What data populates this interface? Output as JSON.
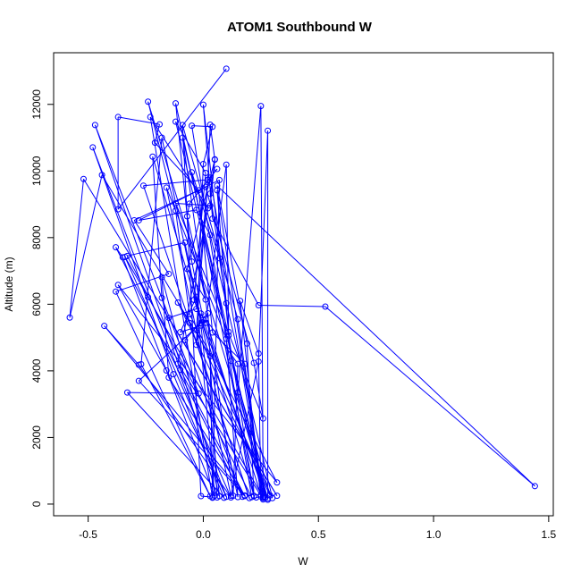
{
  "chart_data": {
    "type": "line",
    "title": "ATOM1 Southbound W",
    "xlabel": "W",
    "ylabel": "Altitude (m)",
    "xlim": [
      -0.65,
      1.52
    ],
    "ylim": [
      -350,
      13550
    ],
    "x_ticks": [
      -0.5,
      0.0,
      0.5,
      1.0,
      1.5
    ],
    "x_tick_labels": [
      "-0.5",
      "0.0",
      "0.5",
      "1.0",
      "1.5"
    ],
    "y_ticks": [
      0,
      2000,
      4000,
      6000,
      8000,
      10000,
      12000
    ],
    "y_tick_labels": [
      "0",
      "2000",
      "4000",
      "6000",
      "8000",
      "10000",
      "12000"
    ],
    "grid": false,
    "markers": "open-circle",
    "series": [
      {
        "color": "#0000ff",
        "points": [
          [
            0.1,
            13070
          ],
          [
            -0.37,
            8850
          ],
          [
            -0.37,
            11620
          ],
          [
            -0.19,
            11400
          ],
          [
            -0.21,
            10850
          ],
          [
            -0.02,
            9420
          ],
          [
            0.04,
            5150
          ],
          [
            0.18,
            4210
          ],
          [
            0.25,
            230
          ],
          [
            0.16,
            6100
          ],
          [
            0.24,
            4520
          ],
          [
            0.25,
            280
          ],
          [
            0.01,
            5560
          ],
          [
            0.15,
            4210
          ],
          [
            0.13,
            250
          ],
          [
            -0.09,
            11000
          ],
          [
            0.11,
            5060
          ],
          [
            0.22,
            250
          ],
          [
            -0.22,
            10430
          ],
          [
            -0.18,
            6190
          ],
          [
            0.06,
            200
          ],
          [
            0.02,
            5730
          ],
          [
            -0.08,
            4920
          ],
          [
            0.17,
            220
          ],
          [
            -0.38,
            7710
          ],
          [
            -0.35,
            7410
          ],
          [
            0.05,
            250
          ],
          [
            -0.03,
            6220
          ],
          [
            -0.1,
            5160
          ],
          [
            -0.01,
            5360
          ],
          [
            0.07,
            240
          ],
          [
            -0.18,
            6810
          ],
          [
            -0.15,
            3800
          ],
          [
            0.18,
            260
          ],
          [
            -0.43,
            5350
          ],
          [
            -0.28,
            4180
          ],
          [
            0.12,
            200
          ],
          [
            -0.34,
            7420
          ],
          [
            -0.24,
            6210
          ],
          [
            0.26,
            200
          ],
          [
            0.06,
            9420
          ],
          [
            0.12,
            4300
          ],
          [
            0.29,
            260
          ],
          [
            -0.11,
            6050
          ],
          [
            -0.06,
            5440
          ],
          [
            0.2,
            180
          ],
          [
            -0.26,
            9560
          ],
          [
            0.02,
            9740
          ],
          [
            -0.03,
            5860
          ],
          [
            -0.15,
            5590
          ],
          [
            0.32,
            250
          ],
          [
            -0.52,
            9760
          ],
          [
            -0.58,
            5600
          ],
          [
            -0.44,
            9880
          ],
          [
            0.03,
            4440
          ],
          [
            0.04,
            190
          ],
          [
            -0.23,
            11620
          ],
          [
            0.02,
            8880
          ],
          [
            -0.11,
            4220
          ],
          [
            0.26,
            140
          ],
          [
            -0.12,
            12030
          ],
          [
            -0.05,
            7280
          ],
          [
            0.0,
            5530
          ],
          [
            0.27,
            210
          ],
          [
            -0.12,
            11480
          ],
          [
            0.01,
            9940
          ],
          [
            -0.04,
            6130
          ],
          [
            0.28,
            130
          ],
          [
            -0.24,
            12080
          ],
          [
            -0.12,
            8810
          ],
          [
            -0.06,
            5700
          ],
          [
            0.32,
            650
          ],
          [
            -0.37,
            6580
          ],
          [
            -0.16,
            4010
          ],
          [
            0.1,
            220
          ],
          [
            -0.48,
            10710
          ],
          [
            -0.13,
            3900
          ],
          [
            0.09,
            190
          ],
          [
            -0.33,
            3350
          ],
          [
            -0.02,
            3320
          ],
          [
            -0.47,
            11380
          ],
          [
            -0.1,
            4030
          ],
          [
            0.18,
            240
          ],
          [
            -0.28,
            3700
          ],
          [
            -0.01,
            5440
          ],
          [
            -0.18,
            11000
          ],
          [
            -0.27,
            4200
          ],
          [
            0.03,
            240
          ],
          [
            -0.38,
            6380
          ],
          [
            -0.15,
            6910
          ],
          [
            -0.3,
            8520
          ],
          [
            0.01,
            9520
          ],
          [
            0.22,
            4240
          ],
          [
            0.26,
            2570
          ],
          [
            -0.12,
            9030
          ],
          [
            0.03,
            8960
          ],
          [
            0.05,
            10340
          ],
          [
            -0.07,
            7060
          ],
          [
            0.01,
            6140
          ],
          [
            -0.07,
            8640
          ],
          [
            -0.06,
            9020
          ],
          [
            0.06,
            10060
          ],
          [
            0.03,
            9800
          ],
          [
            0.26,
            180
          ],
          [
            0.25,
            11950
          ],
          [
            0.15,
            3350
          ],
          [
            0.28,
            170
          ],
          [
            0.28,
            11210
          ],
          [
            0.24,
            4280
          ],
          [
            0.12,
            250
          ],
          [
            -0.16,
            9500
          ],
          [
            0.1,
            4960
          ],
          [
            0.15,
            210
          ],
          [
            -0.08,
            7850
          ],
          [
            -0.33,
            7450
          ],
          [
            0.21,
            210
          ],
          [
            -0.05,
            11360
          ],
          [
            0.04,
            11330
          ],
          [
            0.0,
            10210
          ],
          [
            -0.03,
            4780
          ],
          [
            -0.01,
            5720
          ],
          [
            0.01,
            5440
          ],
          [
            0.1,
            10190
          ],
          [
            0.11,
            5170
          ],
          [
            0.0,
            11990
          ],
          [
            0.04,
            8570
          ],
          [
            0.24,
            5970
          ],
          [
            0.53,
            5930
          ],
          [
            1.44,
            540
          ],
          [
            0.06,
            9560
          ],
          [
            0.19,
            4820
          ],
          [
            0.22,
            240
          ],
          [
            -0.05,
            9960
          ],
          [
            0.07,
            7380
          ],
          [
            0.1,
            6030
          ],
          [
            0.03,
            9320
          ],
          [
            0.05,
            10350
          ],
          [
            0.03,
            11390
          ],
          [
            0.02,
            9730
          ],
          [
            -0.03,
            5220
          ],
          [
            0.3,
            180
          ],
          [
            0.03,
            8080
          ],
          [
            -0.03,
            8830
          ],
          [
            -0.28,
            8520
          ],
          [
            0.07,
            9730
          ],
          [
            0.04,
            210
          ],
          [
            -0.01,
            240
          ],
          [
            -0.09,
            11380
          ],
          [
            0.15,
            5550
          ],
          [
            0.26,
            230
          ],
          [
            0.23,
            200
          ]
        ]
      }
    ]
  }
}
